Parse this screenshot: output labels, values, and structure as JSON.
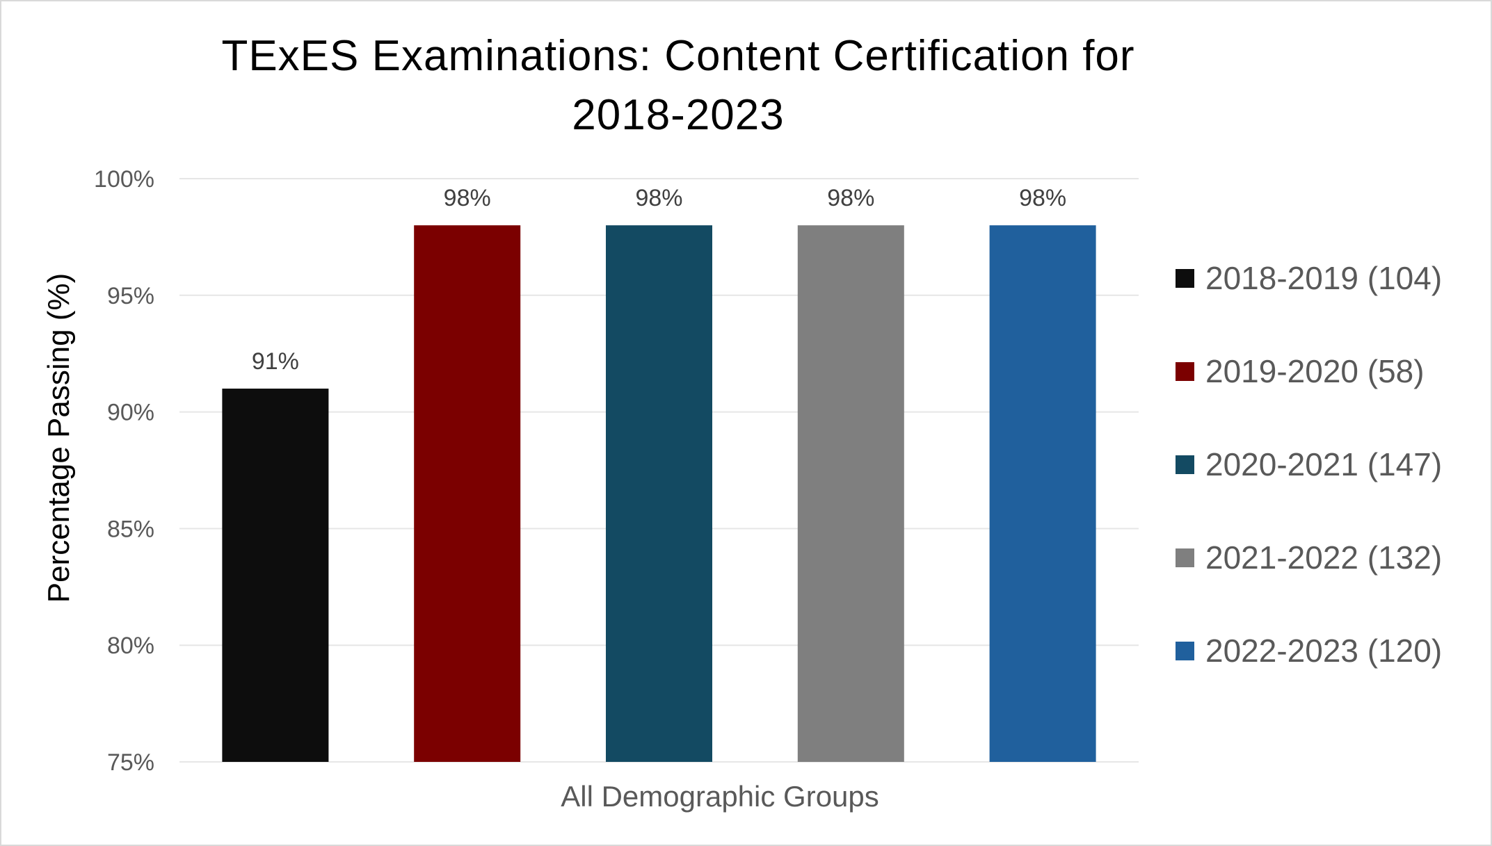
{
  "chart_data": {
    "type": "bar",
    "title_lines": [
      "TExES Examinations: Content Certification for",
      "2018-2023"
    ],
    "xlabel": "All Demographic Groups",
    "ylabel": "Percentage Passing (%)",
    "ylim": [
      75,
      100
    ],
    "yticks": [
      {
        "value": 100,
        "label": "100%"
      },
      {
        "value": 95,
        "label": "95%"
      },
      {
        "value": 90,
        "label": "90%"
      },
      {
        "value": 85,
        "label": "85%"
      },
      {
        "value": 80,
        "label": "80%"
      },
      {
        "value": 75,
        "label": "75%"
      }
    ],
    "grid": true,
    "legend_position": "right",
    "series": [
      {
        "name": "2018-2019 (104)",
        "value": 91,
        "label": "91%",
        "color": "#0d0d0d"
      },
      {
        "name": "2019-2020 (58)",
        "value": 98,
        "label": "98%",
        "color": "#7b0000"
      },
      {
        "name": "2020-2021 (147)",
        "value": 98,
        "label": "98%",
        "color": "#134a62"
      },
      {
        "name": "2021-2022 (132)",
        "value": 98,
        "label": "98%",
        "color": "#7f7f7f"
      },
      {
        "name": "2022-2023 (120)",
        "value": 98,
        "label": "98%",
        "color": "#20609d"
      }
    ]
  }
}
